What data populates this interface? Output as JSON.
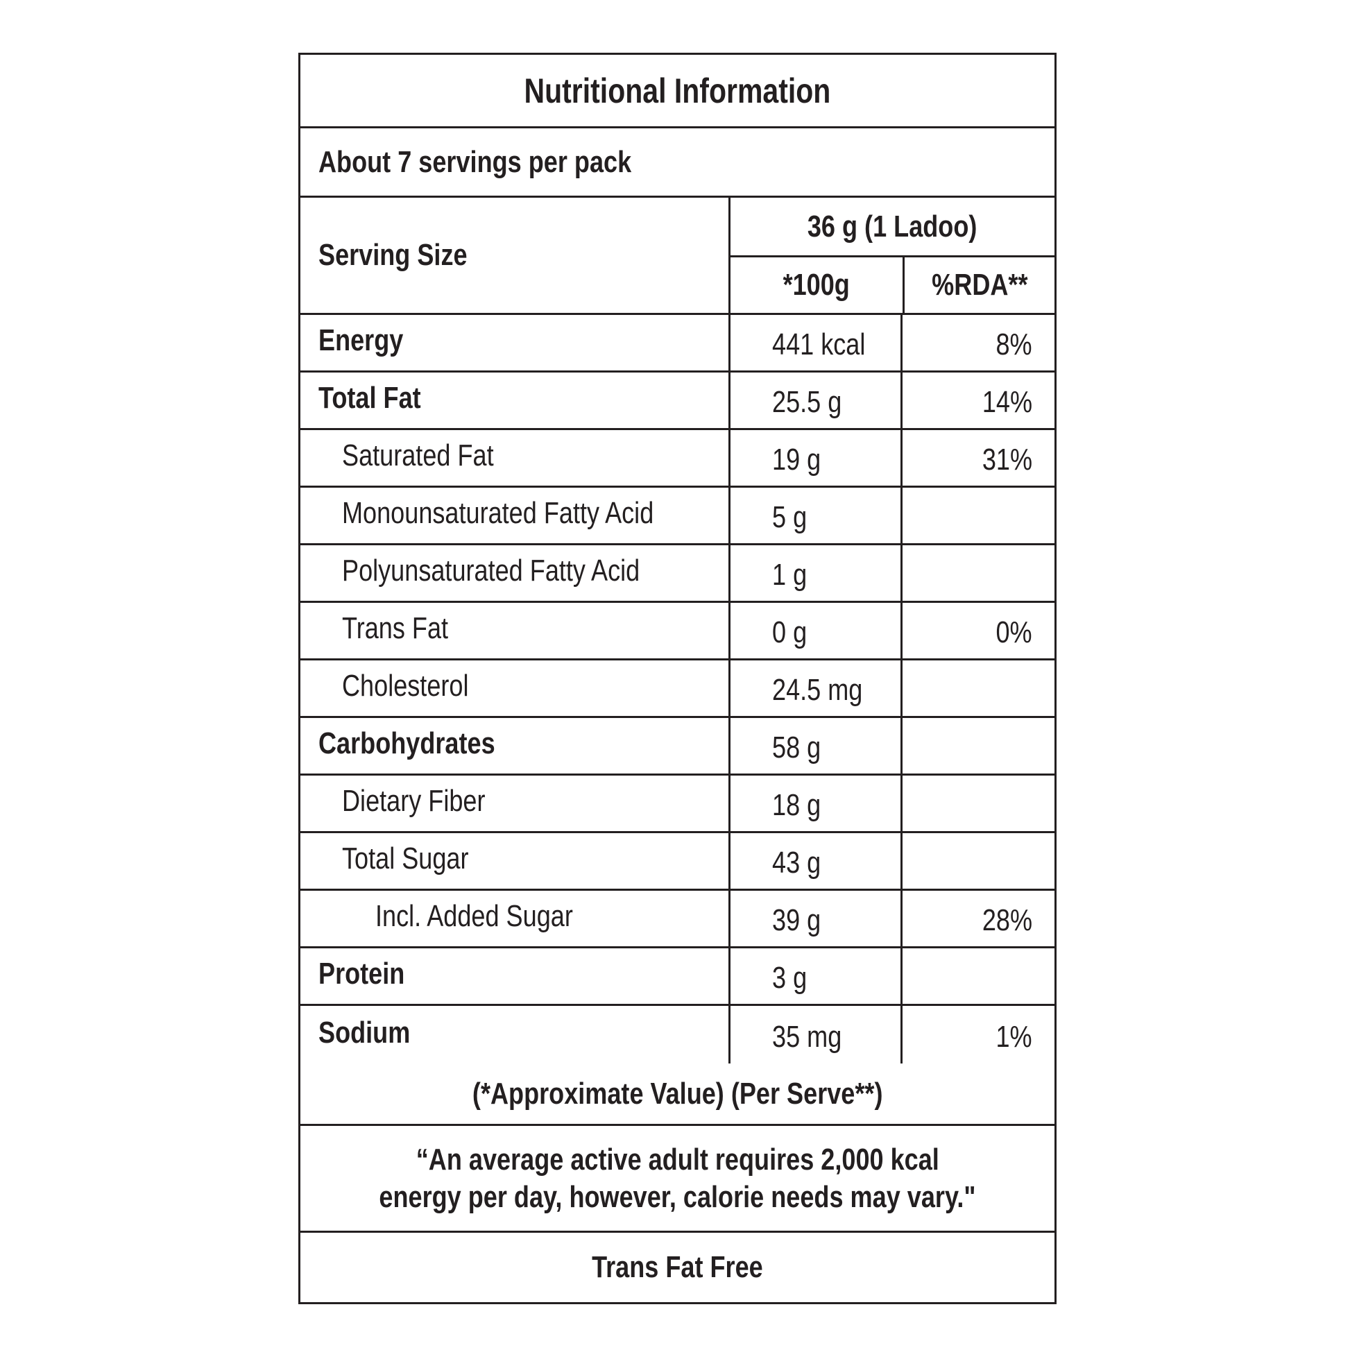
{
  "title": "Nutritional Information",
  "servings_per_pack": "About 7 servings per pack",
  "serving_size": {
    "label": "Serving Size",
    "value": "36 g (1 Ladoo)",
    "col_per_100g": "*100g",
    "col_rda": "%RDA**"
  },
  "nutrients": [
    {
      "name": "Energy",
      "per100g": "441 kcal",
      "rda": "8%",
      "level": 0
    },
    {
      "name": "Total Fat",
      "per100g": "25.5 g",
      "rda": "14%",
      "level": 0
    },
    {
      "name": "Saturated Fat",
      "per100g": "19 g",
      "rda": "31%",
      "level": 1
    },
    {
      "name": "Monounsaturated Fatty Acid",
      "per100g": "5 g",
      "rda": "",
      "level": 1
    },
    {
      "name": "Polyunsaturated Fatty Acid",
      "per100g": "1 g",
      "rda": "",
      "level": 1
    },
    {
      "name": "Trans Fat",
      "per100g": "0 g",
      "rda": "0%",
      "level": 1
    },
    {
      "name": "Cholesterol",
      "per100g": "24.5 mg",
      "rda": "",
      "level": 1
    },
    {
      "name": "Carbohydrates",
      "per100g": "58 g",
      "rda": "",
      "level": 0
    },
    {
      "name": "Dietary Fiber",
      "per100g": "18 g",
      "rda": "",
      "level": 1
    },
    {
      "name": "Total Sugar",
      "per100g": "43 g",
      "rda": "",
      "level": 1
    },
    {
      "name": "Incl. Added Sugar",
      "per100g": "39 g",
      "rda": "28%",
      "level": 2
    },
    {
      "name": "Protein",
      "per100g": "3 g",
      "rda": "",
      "level": 0
    },
    {
      "name": "Sodium",
      "per100g": "35 mg",
      "rda": "1%",
      "level": 0
    }
  ],
  "footnote": "(*Approximate Value) (Per Serve**)",
  "quote_line1": "“An average active adult requires 2,000 kcal",
  "quote_line2": "energy per day, however, calorie needs may vary.\"",
  "claim": "Trans Fat Free"
}
